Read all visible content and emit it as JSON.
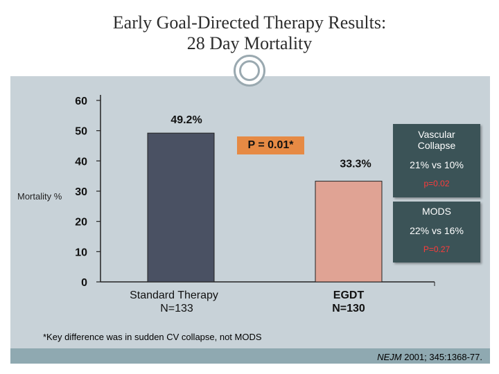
{
  "title": {
    "line1": "Early Goal-Directed Therapy Results:",
    "line2": "28 Day Mortality"
  },
  "chart_data": {
    "type": "bar",
    "ylabel": "Mortality %",
    "ylim": [
      0,
      60
    ],
    "yticks": [
      0,
      10,
      20,
      30,
      40,
      50,
      60
    ],
    "grid": false,
    "bars": [
      {
        "label": "Standard Therapy",
        "sublabel": "N=133",
        "value": 49.2,
        "value_label": "49.2%",
        "color": "#4a5163"
      },
      {
        "label": "EGDT",
        "sublabel": "N=130",
        "value": 33.3,
        "value_label": "33.3%",
        "color": "#e0a394"
      }
    ],
    "annotations": {
      "p_value": "P = 0.01*"
    }
  },
  "vascular_box": {
    "title_line1": "Vascular",
    "title_line2": "Collapse",
    "stat": "21% vs 10%",
    "p": "p=0.02"
  },
  "mods_box": {
    "title": "MODS",
    "stat": "22% vs 16%",
    "p": "P=0.27"
  },
  "footnote": "*Key difference was in sudden CV collapse, not MODS",
  "citation": {
    "journal": "NEJM",
    "rest": " 2001; 345:1368-77."
  },
  "colors": {
    "panel": "#c8d2d8",
    "footer": "#8fa9b1",
    "box": "#3b5357",
    "p_box": "#e68a44",
    "red_text": "#ff3b3b"
  }
}
